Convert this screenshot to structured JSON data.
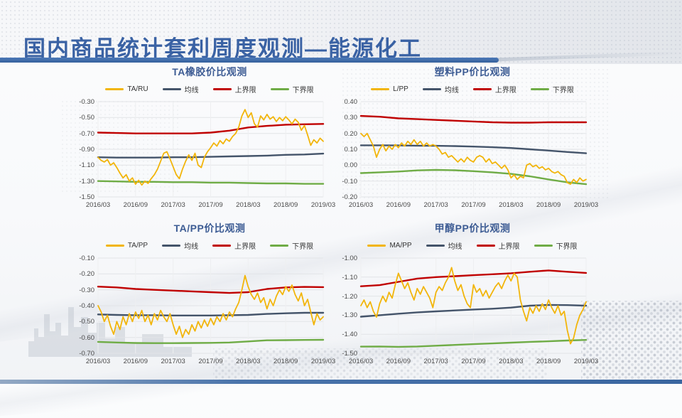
{
  "header": {
    "title": "国内商品统计套利周度观测—能源化工"
  },
  "colors": {
    "accent_bar": "#3F6EAE",
    "bottom_bar": "#3A66A0",
    "header_title": "#3A62A4",
    "chart_title": "#3D5C94",
    "series_gold": "#F2B50A",
    "series_navy": "#44546A",
    "series_red": "#C00000",
    "series_green": "#6FAC46"
  },
  "chart_data": [
    {
      "type": "line",
      "title": "TA橡胶价比观测",
      "x_ticks": [
        "2016/03",
        "2016/09",
        "2017/03",
        "2017/09",
        "2018/03",
        "2018/09",
        "2019/03"
      ],
      "y_ticks": [
        "-0.30",
        "-0.50",
        "-0.70",
        "-0.90",
        "-1.10",
        "-1.30",
        "-1.50"
      ],
      "ylim": [
        -0.3,
        -1.5
      ],
      "grid": true,
      "legend_position": "top",
      "series": [
        {
          "name": "TA/RU",
          "color": "#F2B50A",
          "width": 1.8,
          "values": [
            -1.0,
            -1.04,
            -1.06,
            -1.03,
            -1.1,
            -1.07,
            -1.13,
            -1.2,
            -1.26,
            -1.22,
            -1.3,
            -1.26,
            -1.34,
            -1.29,
            -1.35,
            -1.3,
            -1.33,
            -1.27,
            -1.22,
            -1.15,
            -1.05,
            -0.95,
            -0.93,
            -1.02,
            -1.12,
            -1.22,
            -1.27,
            -1.15,
            -1.05,
            -0.97,
            -1.04,
            -0.95,
            -1.1,
            -1.13,
            -1.0,
            -0.93,
            -0.88,
            -0.82,
            -0.86,
            -0.79,
            -0.83,
            -0.77,
            -0.8,
            -0.74,
            -0.7,
            -0.62,
            -0.48,
            -0.4,
            -0.5,
            -0.44,
            -0.58,
            -0.62,
            -0.48,
            -0.53,
            -0.46,
            -0.52,
            -0.49,
            -0.55,
            -0.5,
            -0.54,
            -0.49,
            -0.53,
            -0.58,
            -0.52,
            -0.56,
            -0.66,
            -0.6,
            -0.72,
            -0.85,
            -0.78,
            -0.82,
            -0.76,
            -0.8
          ]
        },
        {
          "name": "均线",
          "color": "#44546A",
          "width": 2.4,
          "values": [
            -1.0,
            -1.005,
            -1.005,
            -1.005,
            -1.0,
            -1.0,
            -0.995,
            -0.99,
            -0.985,
            -0.98,
            -0.97,
            -0.965,
            -0.955
          ]
        },
        {
          "name": "上界限",
          "color": "#C00000",
          "width": 2.4,
          "values": [
            -0.69,
            -0.695,
            -0.7,
            -0.7,
            -0.7,
            -0.7,
            -0.69,
            -0.665,
            -0.625,
            -0.605,
            -0.59,
            -0.585,
            -0.58
          ]
        },
        {
          "name": "下界限",
          "color": "#6FAC46",
          "width": 2.4,
          "values": [
            -1.3,
            -1.305,
            -1.31,
            -1.31,
            -1.315,
            -1.315,
            -1.32,
            -1.32,
            -1.325,
            -1.33,
            -1.33,
            -1.335,
            -1.335
          ]
        }
      ]
    },
    {
      "type": "line",
      "title": "塑料PP价比观测",
      "x_ticks": [
        "2016/03",
        "2016/09",
        "2017/03",
        "2017/09",
        "2018/03",
        "2018/09",
        "2019/03"
      ],
      "y_ticks": [
        "0.40",
        "0.30",
        "0.20",
        "0.10",
        "0.00",
        "-0.10",
        "-0.20"
      ],
      "ylim": [
        0.4,
        -0.2
      ],
      "grid": true,
      "legend_position": "top",
      "series": [
        {
          "name": "L/PP",
          "color": "#F2B50A",
          "width": 1.8,
          "values": [
            0.2,
            0.18,
            0.2,
            0.16,
            0.12,
            0.05,
            0.1,
            0.13,
            0.09,
            0.12,
            0.1,
            0.13,
            0.11,
            0.14,
            0.12,
            0.15,
            0.13,
            0.16,
            0.13,
            0.15,
            0.12,
            0.14,
            0.12,
            0.13,
            0.12,
            0.1,
            0.07,
            0.08,
            0.05,
            0.06,
            0.04,
            0.02,
            0.04,
            0.02,
            0.05,
            0.03,
            0.02,
            0.05,
            0.06,
            0.05,
            0.02,
            0.04,
            0.01,
            0.02,
            0.0,
            -0.02,
            0.0,
            -0.03,
            -0.08,
            -0.06,
            -0.09,
            -0.07,
            -0.08,
            0.0,
            0.01,
            -0.01,
            0.0,
            -0.02,
            -0.01,
            -0.03,
            -0.02,
            -0.04,
            -0.05,
            -0.04,
            -0.06,
            -0.07,
            -0.11,
            -0.12,
            -0.09,
            -0.11,
            -0.08,
            -0.1,
            -0.09
          ]
        },
        {
          "name": "均线",
          "color": "#44546A",
          "width": 2.4,
          "values": [
            0.125,
            0.125,
            0.124,
            0.123,
            0.122,
            0.12,
            0.117,
            0.113,
            0.108,
            0.1,
            0.092,
            0.083,
            0.075
          ]
        },
        {
          "name": "上界限",
          "color": "#C00000",
          "width": 2.4,
          "values": [
            0.31,
            0.305,
            0.295,
            0.29,
            0.285,
            0.28,
            0.275,
            0.27,
            0.268,
            0.268,
            0.27,
            0.27,
            0.27
          ]
        },
        {
          "name": "下界限",
          "color": "#6FAC46",
          "width": 2.4,
          "values": [
            -0.05,
            -0.045,
            -0.04,
            -0.033,
            -0.03,
            -0.032,
            -0.038,
            -0.045,
            -0.055,
            -0.07,
            -0.09,
            -0.108,
            -0.12
          ]
        }
      ]
    },
    {
      "type": "line",
      "title": "TA/PP价比观测",
      "x_ticks": [
        "2016/03",
        "2016/09",
        "2017/03",
        "2017/09",
        "2018/03",
        "2018/09",
        "2019/03"
      ],
      "y_ticks": [
        "-0.10",
        "-0.20",
        "-0.30",
        "-0.40",
        "-0.50",
        "-0.60",
        "-0.70"
      ],
      "ylim": [
        -0.1,
        -0.7
      ],
      "grid": true,
      "legend_position": "top",
      "series": [
        {
          "name": "TA/PP",
          "color": "#F2B50A",
          "width": 1.8,
          "values": [
            -0.4,
            -0.44,
            -0.5,
            -0.46,
            -0.53,
            -0.58,
            -0.5,
            -0.55,
            -0.47,
            -0.52,
            -0.45,
            -0.5,
            -0.44,
            -0.48,
            -0.43,
            -0.5,
            -0.46,
            -0.52,
            -0.45,
            -0.49,
            -0.43,
            -0.47,
            -0.5,
            -0.45,
            -0.52,
            -0.58,
            -0.53,
            -0.6,
            -0.55,
            -0.58,
            -0.52,
            -0.56,
            -0.5,
            -0.54,
            -0.49,
            -0.53,
            -0.48,
            -0.52,
            -0.47,
            -0.5,
            -0.45,
            -0.49,
            -0.44,
            -0.47,
            -0.42,
            -0.38,
            -0.3,
            -0.21,
            -0.28,
            -0.33,
            -0.36,
            -0.32,
            -0.38,
            -0.35,
            -0.42,
            -0.36,
            -0.4,
            -0.34,
            -0.3,
            -0.33,
            -0.28,
            -0.31,
            -0.27,
            -0.33,
            -0.37,
            -0.32,
            -0.4,
            -0.36,
            -0.44,
            -0.52,
            -0.45,
            -0.49,
            -0.47
          ]
        },
        {
          "name": "均线",
          "color": "#44546A",
          "width": 2.4,
          "values": [
            -0.455,
            -0.458,
            -0.46,
            -0.46,
            -0.462,
            -0.462,
            -0.462,
            -0.46,
            -0.458,
            -0.452,
            -0.448,
            -0.445,
            -0.445
          ]
        },
        {
          "name": "上界限",
          "color": "#C00000",
          "width": 2.4,
          "values": [
            -0.28,
            -0.285,
            -0.295,
            -0.3,
            -0.305,
            -0.31,
            -0.315,
            -0.32,
            -0.315,
            -0.295,
            -0.285,
            -0.282,
            -0.283
          ]
        },
        {
          "name": "下界限",
          "color": "#6FAC46",
          "width": 2.4,
          "values": [
            -0.628,
            -0.632,
            -0.635,
            -0.636,
            -0.636,
            -0.635,
            -0.634,
            -0.632,
            -0.625,
            -0.618,
            -0.617,
            -0.616,
            -0.615
          ]
        }
      ]
    },
    {
      "type": "line",
      "title": "甲醇PP价比观测",
      "x_ticks": [
        "2016/03",
        "2016/09",
        "2017/03",
        "2017/09",
        "2018/03",
        "2018/09",
        "2019/03"
      ],
      "y_ticks": [
        "-1.00",
        "-1.10",
        "-1.20",
        "-1.30",
        "-1.40",
        "-1.50"
      ],
      "ylim": [
        -1.0,
        -1.5
      ],
      "grid": true,
      "legend_position": "top",
      "series": [
        {
          "name": "MA/PP",
          "color": "#F2B50A",
          "width": 1.8,
          "values": [
            -1.25,
            -1.22,
            -1.26,
            -1.23,
            -1.28,
            -1.31,
            -1.24,
            -1.2,
            -1.23,
            -1.18,
            -1.21,
            -1.14,
            -1.08,
            -1.12,
            -1.16,
            -1.13,
            -1.18,
            -1.22,
            -1.16,
            -1.19,
            -1.15,
            -1.18,
            -1.21,
            -1.26,
            -1.18,
            -1.15,
            -1.17,
            -1.13,
            -1.1,
            -1.05,
            -1.12,
            -1.17,
            -1.14,
            -1.2,
            -1.24,
            -1.26,
            -1.14,
            -1.18,
            -1.16,
            -1.2,
            -1.17,
            -1.21,
            -1.18,
            -1.15,
            -1.13,
            -1.16,
            -1.12,
            -1.09,
            -1.12,
            -1.08,
            -1.1,
            -1.22,
            -1.28,
            -1.33,
            -1.26,
            -1.29,
            -1.25,
            -1.28,
            -1.24,
            -1.27,
            -1.22,
            -1.26,
            -1.29,
            -1.25,
            -1.3,
            -1.28,
            -1.38,
            -1.45,
            -1.42,
            -1.35,
            -1.3,
            -1.27,
            -1.23
          ]
        },
        {
          "name": "均线",
          "color": "#44546A",
          "width": 2.4,
          "values": [
            -1.308,
            -1.3,
            -1.292,
            -1.285,
            -1.28,
            -1.275,
            -1.27,
            -1.266,
            -1.26,
            -1.25,
            -1.246,
            -1.247,
            -1.25
          ]
        },
        {
          "name": "上界限",
          "color": "#C00000",
          "width": 2.4,
          "values": [
            -1.148,
            -1.142,
            -1.125,
            -1.108,
            -1.1,
            -1.095,
            -1.09,
            -1.085,
            -1.08,
            -1.072,
            -1.065,
            -1.072,
            -1.078
          ]
        },
        {
          "name": "下界限",
          "color": "#6FAC46",
          "width": 2.4,
          "values": [
            -1.465,
            -1.464,
            -1.466,
            -1.464,
            -1.46,
            -1.456,
            -1.452,
            -1.448,
            -1.444,
            -1.44,
            -1.437,
            -1.433,
            -1.43
          ]
        }
      ]
    }
  ]
}
